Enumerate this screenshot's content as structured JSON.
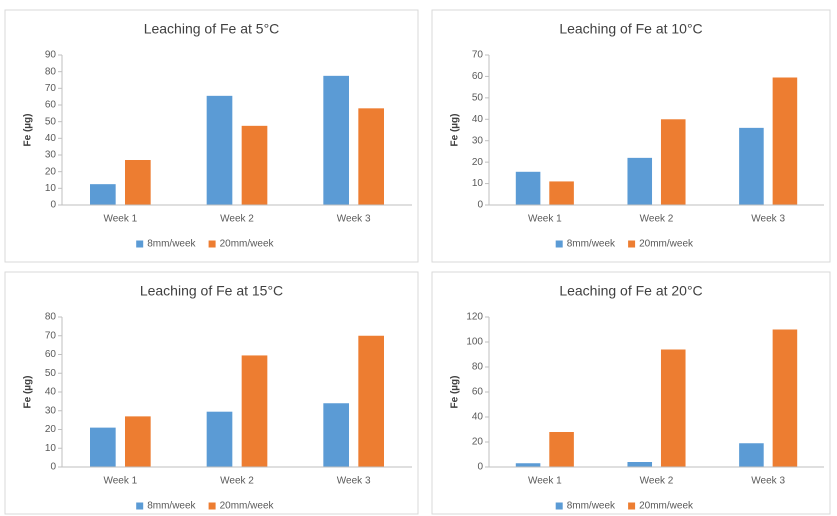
{
  "chart_data": [
    {
      "type": "bar",
      "title": "Leaching of Fe at 5°C",
      "y_label": "Fe (µg)",
      "categories": [
        "Week 1",
        "Week 2",
        "Week 3"
      ],
      "series": [
        {
          "name": "8mm/week",
          "color": "#5b9bd5",
          "values": [
            12.5,
            65.5,
            77.5
          ]
        },
        {
          "name": "20mm/week",
          "color": "#ed7d31",
          "values": [
            27,
            47.5,
            58
          ]
        }
      ],
      "ylim": [
        0,
        90
      ],
      "yticks": [
        0,
        10,
        20,
        30,
        40,
        50,
        60,
        70,
        80,
        90
      ],
      "grid": false,
      "legend": "bottom"
    },
    {
      "type": "bar",
      "title": "Leaching of Fe at 10°C",
      "y_label": "Fe (µg)",
      "categories": [
        "Week 1",
        "Week 2",
        "Week 3"
      ],
      "series": [
        {
          "name": "8mm/week",
          "color": "#5b9bd5",
          "values": [
            15.5,
            22,
            36
          ]
        },
        {
          "name": "20mm/week",
          "color": "#ed7d31",
          "values": [
            11,
            40,
            59.5
          ]
        }
      ],
      "ylim": [
        0,
        70
      ],
      "yticks": [
        0,
        10,
        20,
        30,
        40,
        50,
        60,
        70
      ],
      "grid": false,
      "legend": "bottom"
    },
    {
      "type": "bar",
      "title": "Leaching of Fe at 15°C",
      "y_label": "Fe (µg)",
      "categories": [
        "Week 1",
        "Week 2",
        "Week 3"
      ],
      "series": [
        {
          "name": "8mm/week",
          "color": "#5b9bd5",
          "values": [
            21,
            29.5,
            34
          ]
        },
        {
          "name": "20mm/week",
          "color": "#ed7d31",
          "values": [
            27,
            59.5,
            70
          ]
        }
      ],
      "ylim": [
        0,
        80
      ],
      "yticks": [
        0,
        10,
        20,
        30,
        40,
        50,
        60,
        70,
        80
      ],
      "grid": false,
      "legend": "bottom"
    },
    {
      "type": "bar",
      "title": "Leaching of Fe at 20°C",
      "y_label": "Fe (µg)",
      "categories": [
        "Week 1",
        "Week 2",
        "Week 3"
      ],
      "series": [
        {
          "name": "8mm/week",
          "color": "#5b9bd5",
          "values": [
            3,
            4,
            19
          ]
        },
        {
          "name": "20mm/week",
          "color": "#ed7d31",
          "values": [
            28,
            94,
            110
          ]
        }
      ],
      "ylim": [
        0,
        120
      ],
      "yticks": [
        0,
        20,
        40,
        60,
        80,
        100,
        120
      ],
      "grid": false,
      "legend": "bottom"
    }
  ]
}
